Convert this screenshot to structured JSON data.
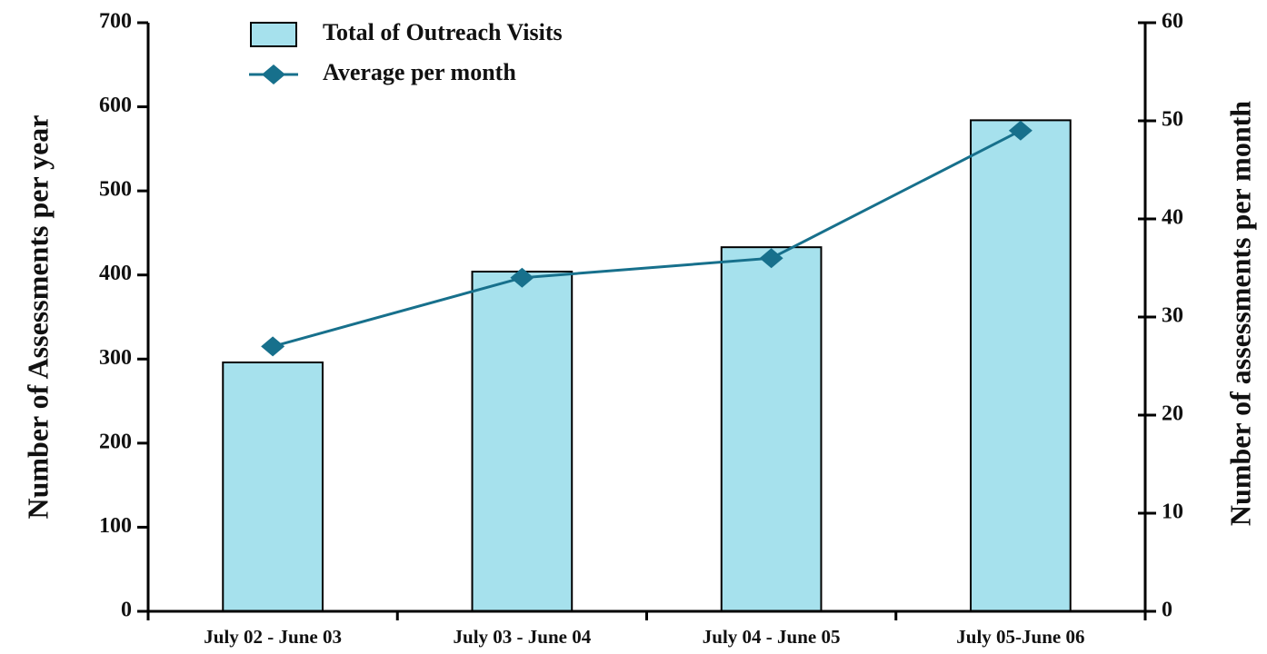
{
  "chart_data": {
    "type": "bar",
    "categories": [
      "July 02 - June 03",
      "July 03 - June 04",
      "July 04 - June 05",
      "July 05-June 06"
    ],
    "series": [
      {
        "name": "Total of Outreach Visits",
        "color": "#a6e1ed",
        "values": [
          296,
          404,
          433,
          584
        ]
      },
      {
        "name": "Average per month",
        "color": "#17708c",
        "type": "line",
        "axis": "y2",
        "values": [
          27,
          34,
          36,
          49
        ]
      }
    ],
    "ylabel": "Number of Assessments per year",
    "y2label": "Number of assessments per month",
    "ylim": [
      0,
      700
    ],
    "yticks": [
      0,
      100,
      200,
      300,
      400,
      500,
      600,
      700
    ],
    "y2lim": [
      0,
      60
    ],
    "y2ticks": [
      0,
      10,
      20,
      30,
      40,
      50,
      60
    ]
  }
}
